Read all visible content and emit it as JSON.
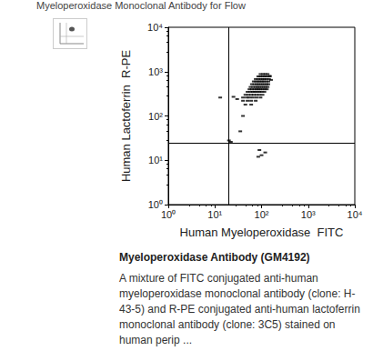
{
  "header": "Myeloperoxidase Monoclonal Antibody for Flow",
  "chart_data": {
    "type": "scatter",
    "x_label": "Human Myeloperoxidase  FITC",
    "y_label": "Human Lactoferrin  R-PE",
    "log": true,
    "grid": false,
    "color": "#000000",
    "marker": "dash",
    "xlim": [
      1,
      10000
    ],
    "ylim": [
      1,
      10000
    ],
    "xticks": [
      {
        "value": 1,
        "label": "10⁰"
      },
      {
        "value": 10,
        "label": "10¹"
      },
      {
        "value": 100,
        "label": "10²"
      },
      {
        "value": 1000,
        "label": "10³"
      },
      {
        "value": 10000,
        "label": "10⁴"
      }
    ],
    "yticks": [
      {
        "value": 1,
        "label": "10⁰"
      },
      {
        "value": 10,
        "label": "10¹"
      },
      {
        "value": 100,
        "label": "10²"
      },
      {
        "value": 1000,
        "label": "10³"
      },
      {
        "value": 10000,
        "label": "10⁴"
      }
    ],
    "quadrant_x": 20,
    "quadrant_y": 25,
    "x": [
      45,
      60,
      40,
      50,
      60,
      75,
      40,
      48,
      55,
      65,
      78,
      95,
      45,
      52,
      60,
      68,
      78,
      90,
      105,
      50,
      58,
      65,
      72,
      80,
      90,
      100,
      115,
      55,
      62,
      70,
      78,
      86,
      95,
      105,
      118,
      130,
      58,
      66,
      74,
      82,
      90,
      100,
      110,
      122,
      135,
      62,
      70,
      78,
      86,
      95,
      105,
      115,
      128,
      140,
      68,
      76,
      84,
      92,
      102,
      112,
      125,
      140,
      75,
      85,
      95,
      105,
      115,
      128,
      145,
      85,
      95,
      105,
      118,
      130,
      150,
      95,
      108,
      120,
      135,
      30,
      25,
      13,
      22,
      20,
      35,
      40,
      90,
      100,
      85,
      120,
      150,
      160
    ],
    "values": [
      180,
      180,
      220,
      220,
      220,
      220,
      260,
      260,
      260,
      260,
      260,
      260,
      300,
      300,
      300,
      300,
      300,
      300,
      300,
      350,
      350,
      350,
      350,
      350,
      350,
      350,
      350,
      400,
      400,
      400,
      400,
      400,
      400,
      400,
      400,
      400,
      450,
      450,
      450,
      450,
      450,
      450,
      450,
      450,
      450,
      520,
      520,
      520,
      520,
      520,
      520,
      520,
      520,
      520,
      600,
      600,
      600,
      600,
      600,
      600,
      600,
      600,
      680,
      680,
      680,
      680,
      680,
      680,
      680,
      780,
      780,
      780,
      780,
      780,
      780,
      880,
      880,
      880,
      880,
      240,
      270,
      260,
      26,
      28,
      45,
      100,
      17,
      13,
      12,
      15,
      800,
      650
    ]
  },
  "caption_title": "Myeloperoxidase Antibody (GM4192)",
  "description_lines": [
    "A mixture of FITC conjugated anti-human",
    "myeloperoxidase monoclonal antibody (clone: H-",
    "43-5) and R-PE conjugated anti-human lactoferrin",
    "monoclonal antibody (clone: 3C5) stained on",
    "human perip ..."
  ]
}
